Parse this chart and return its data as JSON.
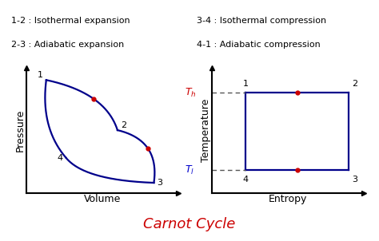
{
  "title": "Carnot Cycle",
  "title_color": "#cc0000",
  "title_fontsize": 13,
  "background_color": "#ffffff",
  "legend_lines": [
    "1-2 : Isothermal expansion",
    "2-3 : Adiabatic expansion",
    "3-4 : Isothermal compression",
    "4-1 : Adiabatic compression"
  ],
  "pv_xlabel": "Volume",
  "pv_ylabel": "Pressure",
  "ts_xlabel": "Entropy",
  "ts_ylabel": "Temperature",
  "curve_color": "#00008B",
  "midpoint_color": "#cc0000",
  "dashed_color": "#555555",
  "Th_color": "#cc0000",
  "Tl_color": "#0000cc",
  "label_color": "#000000",
  "legend_fontsize": 8,
  "axis_label_fontsize": 9,
  "point_label_fontsize": 8
}
